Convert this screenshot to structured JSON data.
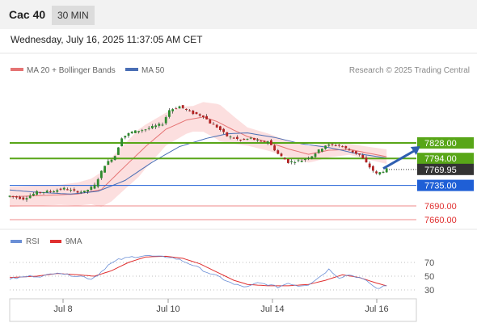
{
  "header": {
    "instrument": "Cac 40",
    "timeframe": "30 MIN",
    "datetime": "Wednesday, July 16, 2025 11:37:05 AM CET"
  },
  "legend": {
    "ma20": "MA 20 + Bollinger Bands",
    "ma50": "MA 50",
    "credit": "Research © 2025 Trading Central"
  },
  "rsi_legend": {
    "rsi": "RSI",
    "ma9": "9MA"
  },
  "colors": {
    "up": "#2e8b2e",
    "down": "#b22222",
    "wick": "#333333",
    "ma20": "#e57373",
    "ma50": "#4a6fb5",
    "band": "#fcd9d9",
    "green_level": "#58a618",
    "blue_level": "#1f5fd6",
    "red_level": "#ef8a8a",
    "current": "#333333",
    "arrow": "#2f5fb0",
    "rsi": "#6b8fd6",
    "rsi_ma": "#e03030"
  },
  "chart_data": [
    {
      "type": "candlestick",
      "x_labels": [
        "Jul 8",
        "Jul 10",
        "Jul 14",
        "Jul 16"
      ],
      "ylim": [
        7640,
        7950
      ],
      "levels": [
        {
          "value": 7828.0,
          "label": "7828.00",
          "kind": "resistance"
        },
        {
          "value": 7794.0,
          "label": "7794.00",
          "kind": "resistance"
        },
        {
          "value": 7769.95,
          "label": "7769.95",
          "kind": "current"
        },
        {
          "value": 7735.0,
          "label": "7735.00",
          "kind": "pivot"
        },
        {
          "value": 7690.0,
          "label": "7690.00",
          "kind": "support"
        },
        {
          "value": 7660.0,
          "label": "7660.00",
          "kind": "support"
        }
      ],
      "anchors": [
        [
          0,
          7712
        ],
        [
          4,
          7706
        ],
        [
          8,
          7720
        ],
        [
          12,
          7722
        ],
        [
          16,
          7728
        ],
        [
          19,
          7722
        ],
        [
          22,
          7721
        ],
        [
          25,
          7735
        ],
        [
          28,
          7780
        ],
        [
          31,
          7800
        ],
        [
          33,
          7840
        ],
        [
          36,
          7852
        ],
        [
          40,
          7858
        ],
        [
          45,
          7870
        ],
        [
          47,
          7900
        ],
        [
          50,
          7908
        ],
        [
          54,
          7893
        ],
        [
          57,
          7887
        ],
        [
          59,
          7872
        ],
        [
          61,
          7863
        ],
        [
          64,
          7843
        ],
        [
          68,
          7834
        ],
        [
          71,
          7838
        ],
        [
          74,
          7830
        ],
        [
          76,
          7832
        ],
        [
          79,
          7804
        ],
        [
          82,
          7786
        ],
        [
          86,
          7790
        ],
        [
          89,
          7800
        ],
        [
          93,
          7823
        ],
        [
          97,
          7823
        ],
        [
          100,
          7812
        ],
        [
          103,
          7802
        ],
        [
          106,
          7775
        ],
        [
          108,
          7760
        ],
        [
          111,
          7770
        ]
      ],
      "ma20_anchors": [
        [
          0,
          7710
        ],
        [
          10,
          7713
        ],
        [
          20,
          7716
        ],
        [
          27,
          7726
        ],
        [
          33,
          7770
        ],
        [
          40,
          7820
        ],
        [
          46,
          7858
        ],
        [
          52,
          7878
        ],
        [
          57,
          7885
        ],
        [
          61,
          7875
        ],
        [
          66,
          7856
        ],
        [
          70,
          7842
        ],
        [
          76,
          7830
        ],
        [
          82,
          7815
        ],
        [
          88,
          7803
        ],
        [
          94,
          7812
        ],
        [
          100,
          7814
        ],
        [
          106,
          7805
        ],
        [
          111,
          7798
        ]
      ],
      "ma50_anchors": [
        [
          0,
          7725
        ],
        [
          8,
          7720
        ],
        [
          18,
          7716
        ],
        [
          26,
          7722
        ],
        [
          34,
          7746
        ],
        [
          42,
          7786
        ],
        [
          50,
          7820
        ],
        [
          58,
          7838
        ],
        [
          64,
          7848
        ],
        [
          70,
          7850
        ],
        [
          78,
          7840
        ],
        [
          86,
          7826
        ],
        [
          94,
          7818
        ],
        [
          102,
          7805
        ],
        [
          111,
          7795
        ]
      ],
      "band_half_width": [
        [
          0,
          22
        ],
        [
          15,
          22
        ],
        [
          24,
          28
        ],
        [
          30,
          48
        ],
        [
          38,
          52
        ],
        [
          46,
          36
        ],
        [
          54,
          28
        ],
        [
          62,
          40
        ],
        [
          70,
          20
        ],
        [
          80,
          18
        ],
        [
          90,
          18
        ],
        [
          100,
          12
        ],
        [
          111,
          16
        ]
      ],
      "forecast": {
        "from": [
          110,
          7772
        ],
        "to": [
          119,
          7828
        ]
      }
    },
    {
      "type": "line",
      "name": "RSI",
      "ylim": [
        20,
        80
      ],
      "y_ticks": [
        "70",
        "50",
        "30"
      ],
      "rsi_anchors": [
        [
          0,
          46
        ],
        [
          6,
          50
        ],
        [
          10,
          50
        ],
        [
          14,
          56
        ],
        [
          17,
          52
        ],
        [
          21,
          50
        ],
        [
          24,
          46
        ],
        [
          26,
          52
        ],
        [
          29,
          66
        ],
        [
          32,
          74
        ],
        [
          36,
          78
        ],
        [
          40,
          80
        ],
        [
          44,
          78
        ],
        [
          47,
          78
        ],
        [
          50,
          74
        ],
        [
          54,
          66
        ],
        [
          58,
          56
        ],
        [
          62,
          48
        ],
        [
          66,
          38
        ],
        [
          70,
          34
        ],
        [
          73,
          40
        ],
        [
          76,
          38
        ],
        [
          79,
          34
        ],
        [
          82,
          40
        ],
        [
          85,
          36
        ],
        [
          88,
          38
        ],
        [
          91,
          48
        ],
        [
          94,
          60
        ],
        [
          97,
          48
        ],
        [
          100,
          52
        ],
        [
          103,
          48
        ],
        [
          106,
          40
        ],
        [
          108,
          32
        ],
        [
          111,
          36
        ]
      ],
      "ma9_anchors": [
        [
          0,
          48
        ],
        [
          8,
          50
        ],
        [
          14,
          54
        ],
        [
          20,
          52
        ],
        [
          25,
          50
        ],
        [
          30,
          58
        ],
        [
          35,
          70
        ],
        [
          40,
          78
        ],
        [
          46,
          79
        ],
        [
          51,
          76
        ],
        [
          56,
          68
        ],
        [
          61,
          56
        ],
        [
          66,
          44
        ],
        [
          70,
          38
        ],
        [
          76,
          36
        ],
        [
          82,
          36
        ],
        [
          88,
          38
        ],
        [
          93,
          44
        ],
        [
          98,
          52
        ],
        [
          103,
          48
        ],
        [
          108,
          40
        ],
        [
          111,
          36
        ]
      ]
    }
  ]
}
